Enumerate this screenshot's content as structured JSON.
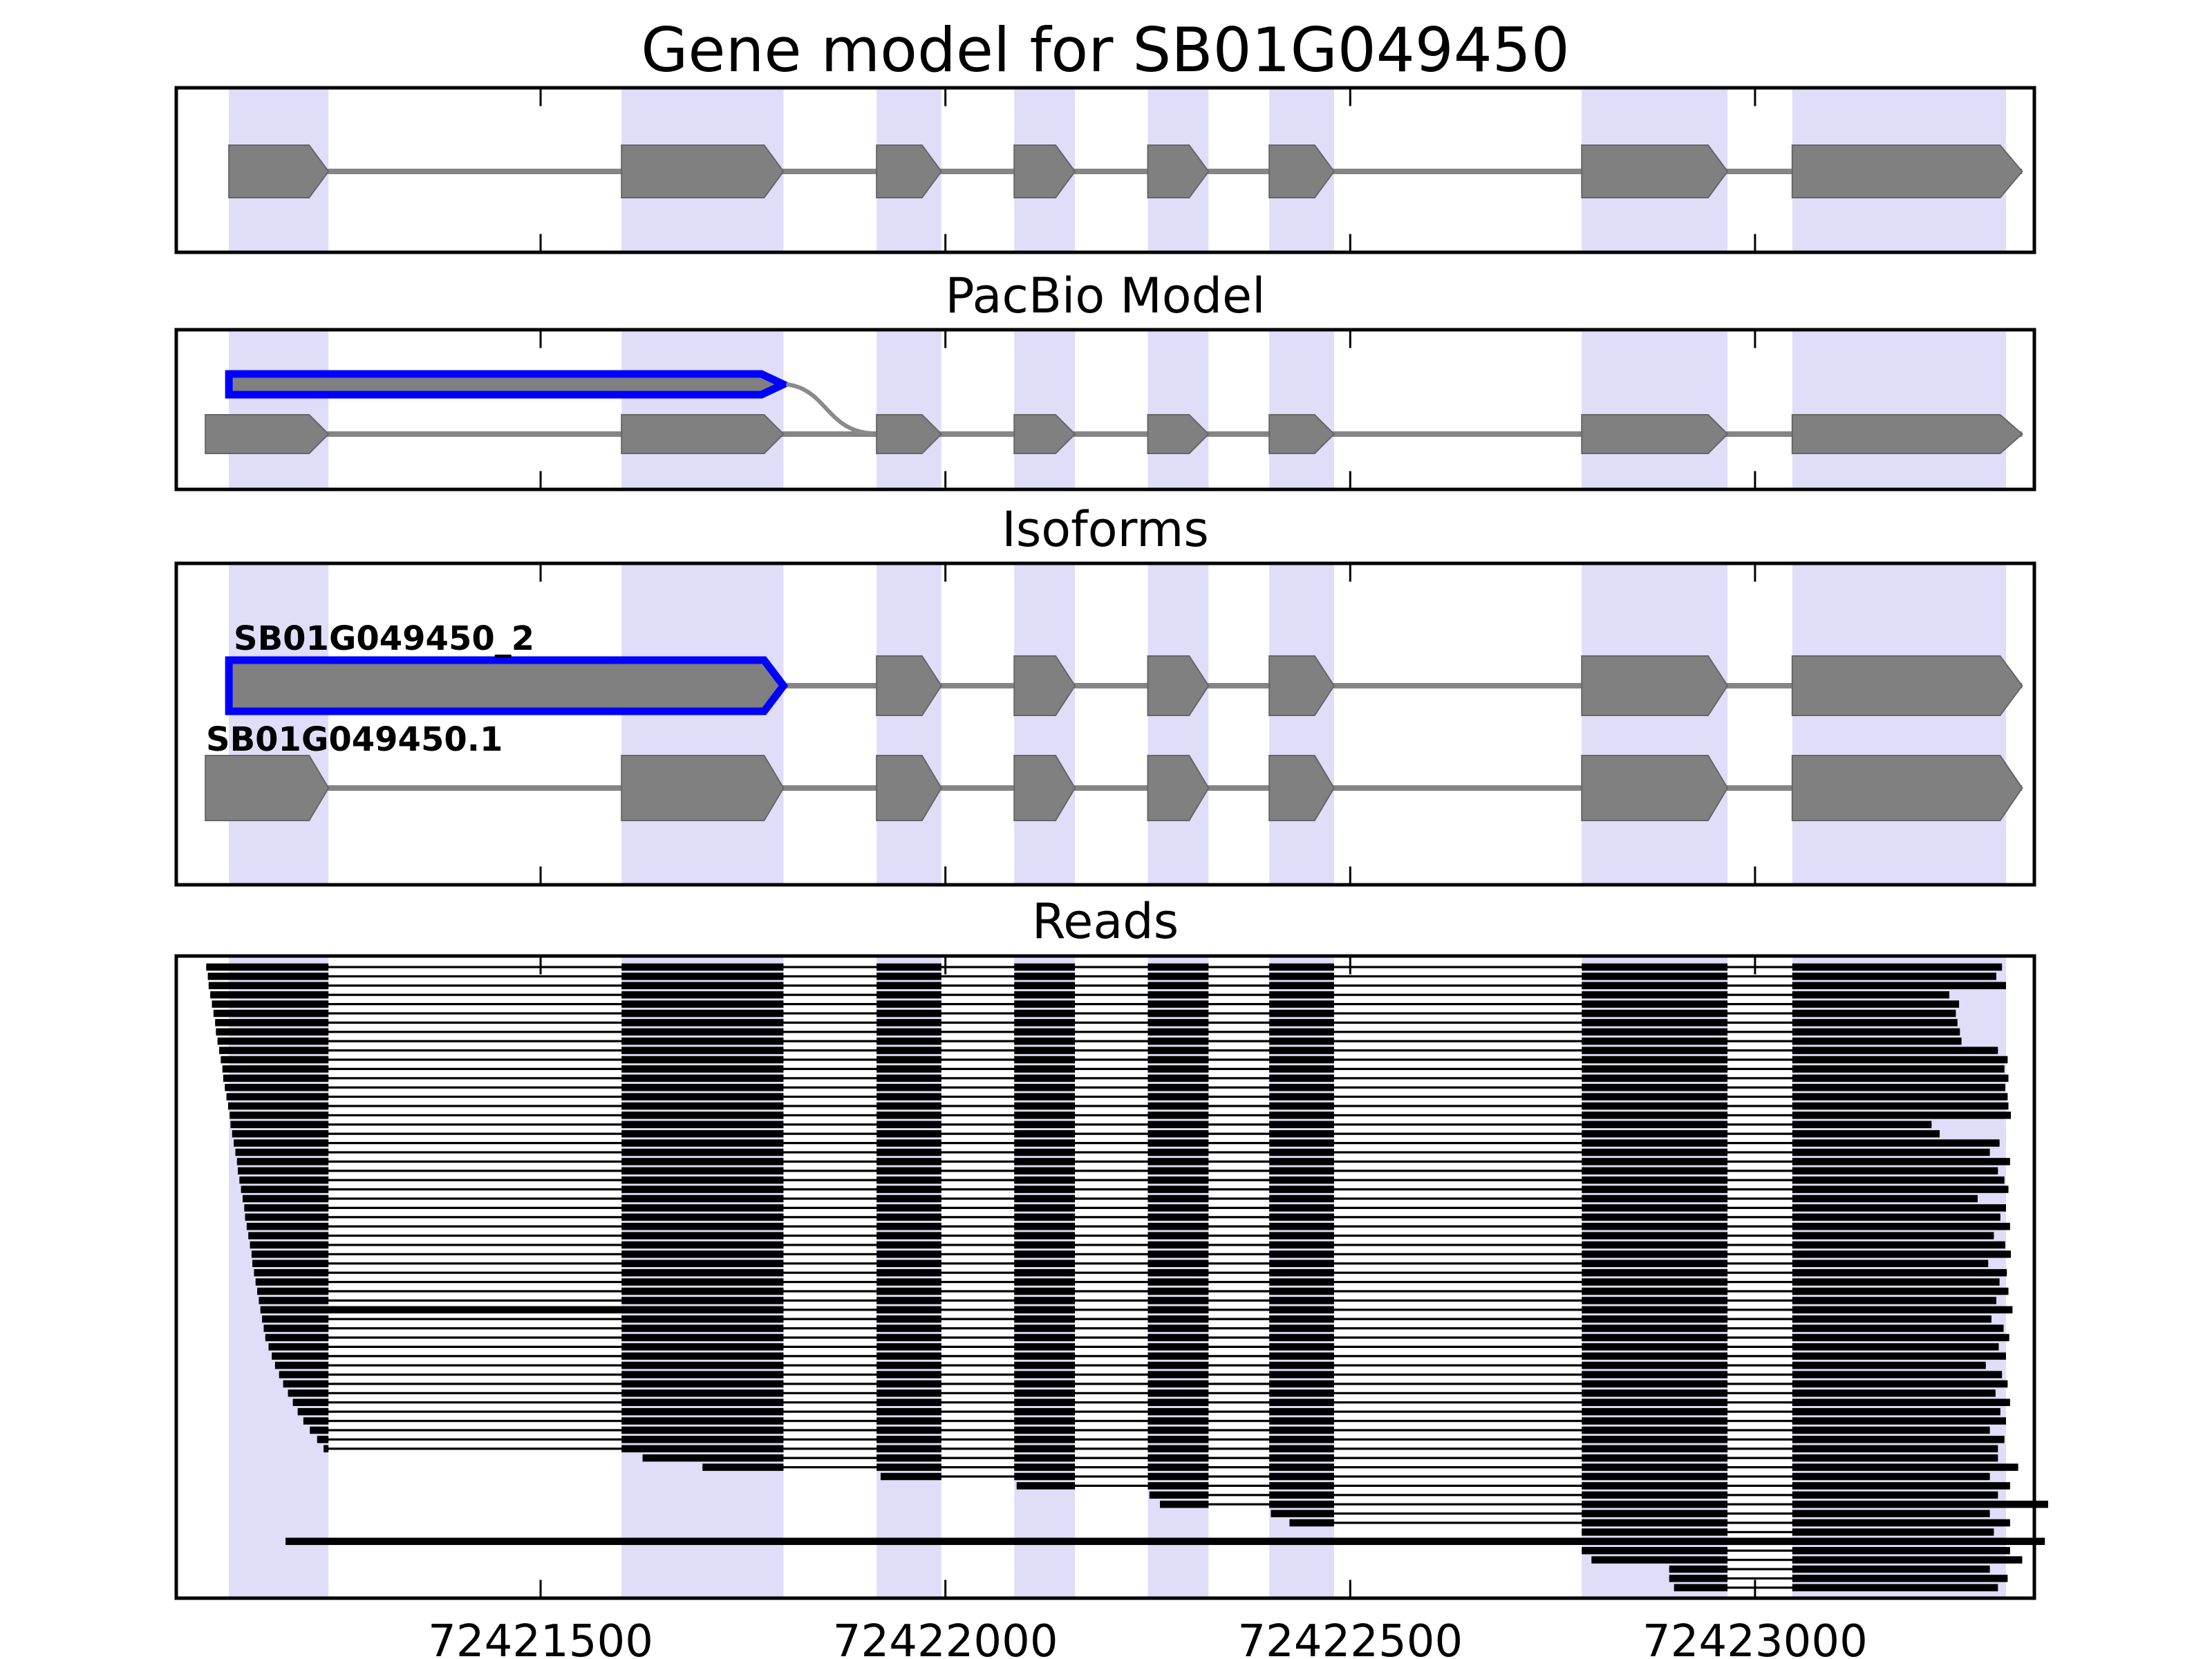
{
  "figure_title": "Gene model for SB01G049450",
  "colors": {
    "background": "#ffffff",
    "exon_fill": "#808080",
    "exon_edge": "#666666",
    "intron_line": "#858585",
    "highlight_band": "#dfddf8",
    "model_outline_blue": "#0000ff",
    "read_black": "#000000",
    "panel_border": "#000000",
    "junction_curve": "#8a8a8a",
    "text": "#000000"
  },
  "chart_data": {
    "type": "genome-browser",
    "gene_id": "SB01G049450",
    "x_range_bp": [
      72421050,
      72423345
    ],
    "x_ticks": [
      72421500,
      72422000,
      72422500,
      72423000
    ],
    "x_tick_labels": [
      "72421500",
      "72422000",
      "72422500",
      "72423000"
    ],
    "highlight_bands_bp": [
      [
        72421115,
        72421238
      ],
      [
        72421600,
        72421800
      ],
      [
        72421915,
        72421995
      ],
      [
        72422085,
        72422160
      ],
      [
        72422250,
        72422325
      ],
      [
        72422400,
        72422480
      ],
      [
        72422786,
        72422966
      ],
      [
        72423046,
        72423310
      ]
    ],
    "panels": [
      {
        "id": "gene-model",
        "title": "Gene model for SB01G049450",
        "rows": [
          {
            "name": null,
            "exons": [
              [
                72421115,
                72421238
              ],
              [
                72421600,
                72421800
              ],
              [
                72421915,
                72421995
              ],
              [
                72422085,
                72422160
              ],
              [
                72422250,
                72422325
              ],
              [
                72422400,
                72422480
              ],
              [
                72422786,
                72422966
              ],
              [
                72423046,
                72423330
              ]
            ]
          }
        ]
      },
      {
        "id": "pacbio-model",
        "title": "PacBio Model",
        "junction_curve_bp": [
          72421800,
          72421915
        ],
        "rows": [
          {
            "name": null,
            "blue_outline": true,
            "no_line": true,
            "exons": [
              [
                72421115,
                72421800
              ]
            ]
          },
          {
            "name": null,
            "exons": [
              [
                72421086,
                72421238
              ],
              [
                72421600,
                72421800
              ],
              [
                72421915,
                72421995
              ],
              [
                72422085,
                72422160
              ],
              [
                72422250,
                72422325
              ],
              [
                72422400,
                72422480
              ],
              [
                72422786,
                72422966
              ],
              [
                72423046,
                72423330
              ]
            ]
          }
        ]
      },
      {
        "id": "isoforms",
        "title": "Isoforms",
        "rows": [
          {
            "name": "SB01G049450_2",
            "blue_outline_first": true,
            "exons": [
              [
                72421115,
                72421800
              ],
              [
                72421915,
                72421995
              ],
              [
                72422085,
                72422160
              ],
              [
                72422250,
                72422325
              ],
              [
                72422400,
                72422480
              ],
              [
                72422786,
                72422966
              ],
              [
                72423046,
                72423330
              ]
            ]
          },
          {
            "name": "SB01G049450.1",
            "exons": [
              [
                72421086,
                72421238
              ],
              [
                72421600,
                72421800
              ],
              [
                72421915,
                72421995
              ],
              [
                72422085,
                72422160
              ],
              [
                72422250,
                72422325
              ],
              [
                72422400,
                72422480
              ],
              [
                72422786,
                72422966
              ],
              [
                72423046,
                72423330
              ]
            ]
          }
        ]
      },
      {
        "id": "reads",
        "title": "Reads",
        "splice_exons_bp": [
          [
            72421080,
            72421238
          ],
          [
            72421600,
            72421800
          ],
          [
            72421915,
            72421995
          ],
          [
            72422085,
            72422160
          ],
          [
            72422250,
            72422325
          ],
          [
            72422400,
            72422480
          ],
          [
            72422786,
            72422966
          ],
          [
            72423046,
            72423400
          ]
        ],
        "reads": [
          [
            72421087,
            72423305
          ],
          [
            72421089,
            72423298
          ],
          [
            72421090,
            72423310
          ],
          [
            72421092,
            72423240
          ],
          [
            72421094,
            72423252
          ],
          [
            72421096,
            72423248
          ],
          [
            72421098,
            72423250
          ],
          [
            72421099,
            72423253
          ],
          [
            72421101,
            72423255
          ],
          [
            72421103,
            72423300
          ],
          [
            72421105,
            72423312
          ],
          [
            72421107,
            72423308
          ],
          [
            72421108,
            72423313
          ],
          [
            72421110,
            72423309
          ],
          [
            72421112,
            72423312
          ],
          [
            72421114,
            72423313
          ],
          [
            72421116,
            72423316
          ],
          [
            72421117,
            72423218
          ],
          [
            72421119,
            72423228
          ],
          [
            72421121,
            72423302
          ],
          [
            72421123,
            72423290
          ],
          [
            72421125,
            72423315
          ],
          [
            72421126,
            72423300
          ],
          [
            72421128,
            72423308
          ],
          [
            72421130,
            72423313
          ],
          [
            72421132,
            72423275
          ],
          [
            72421134,
            72423310
          ],
          [
            72421135,
            72423303
          ],
          [
            72421137,
            72423315
          ],
          [
            72421139,
            72423295
          ],
          [
            72421141,
            72423309
          ],
          [
            72421143,
            72423316
          ],
          [
            72421144,
            72423288
          ],
          [
            72421146,
            72423311
          ],
          [
            72421148,
            72423302
          ],
          [
            72421150,
            72423313
          ],
          [
            72421152,
            72423298
          ],
          [
            72421154,
            72423318,
            2
          ],
          [
            72421156,
            72423292
          ],
          [
            72421158,
            72423307
          ],
          [
            72421160,
            72423314
          ],
          [
            72421164,
            72423301
          ],
          [
            72421168,
            72423310
          ],
          [
            72421172,
            72423285
          ],
          [
            72421177,
            72423305
          ],
          [
            72421182,
            72423312
          ],
          [
            72421188,
            72423297
          ],
          [
            72421194,
            72423315
          ],
          [
            72421200,
            72423303
          ],
          [
            72421207,
            72423310
          ],
          [
            72421215,
            72423290
          ],
          [
            72421224,
            72423308
          ],
          [
            72421232,
            72423300
          ],
          [
            72421626,
            72423300
          ],
          [
            72421700,
            72423325
          ],
          [
            72421920,
            72423290
          ],
          [
            72422088,
            72423315
          ],
          [
            72422252,
            72423300
          ],
          [
            72422265,
            72423362
          ],
          [
            72422402,
            72423290
          ],
          [
            72422425,
            72423315
          ],
          [
            72422786,
            72423295
          ],
          [
            72421185,
            72423358,
            1
          ],
          [
            72422786,
            72423315
          ],
          [
            72422798,
            72423330
          ],
          [
            72422894,
            72423290
          ],
          [
            72422894,
            72423312
          ],
          [
            72422900,
            72423300
          ]
        ]
      }
    ]
  }
}
